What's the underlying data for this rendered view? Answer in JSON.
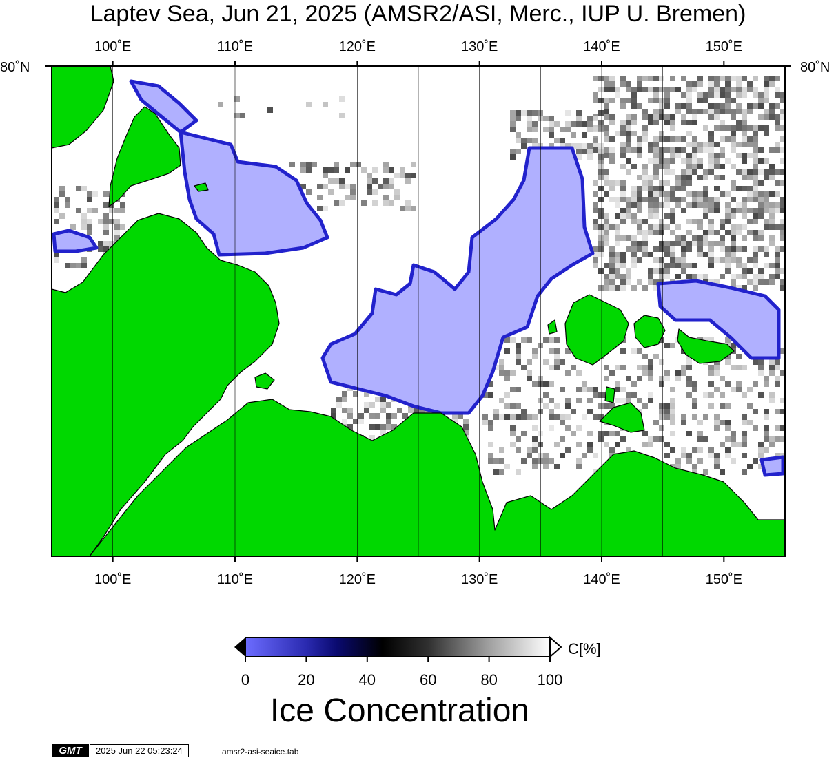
{
  "map": {
    "title": "Laptev Sea, Jun 21, 2025 (AMSR2/ASI, Merc., IUP U. Bremen)",
    "lon_ticks": [
      {
        "lon": 100,
        "label": "100˚E"
      },
      {
        "lon": 110,
        "label": "110˚E"
      },
      {
        "lon": 120,
        "label": "120˚E"
      },
      {
        "lon": 130,
        "label": "130˚E"
      },
      {
        "lon": 140,
        "label": "140˚E"
      },
      {
        "lon": 150,
        "label": "150˚E"
      }
    ],
    "lon_range": [
      95,
      155
    ],
    "lat_tick_label": "80˚N",
    "colors": {
      "land": "#00d800",
      "open_water": "#ffffff",
      "ice_low": "#b0b0ff",
      "ice_edge": "#3a3aff",
      "frame": "#000000"
    }
  },
  "legend": {
    "title": "Ice Concentration",
    "unit": "C[%]",
    "ticks": [
      "0",
      "20",
      "40",
      "60",
      "80",
      "100"
    ],
    "range": [
      0,
      100
    ]
  },
  "footer": {
    "logo": "GMT",
    "timestamp": "2025 Jun 22 05:23:24",
    "file": "amsr2-asi-seaice.tab"
  }
}
